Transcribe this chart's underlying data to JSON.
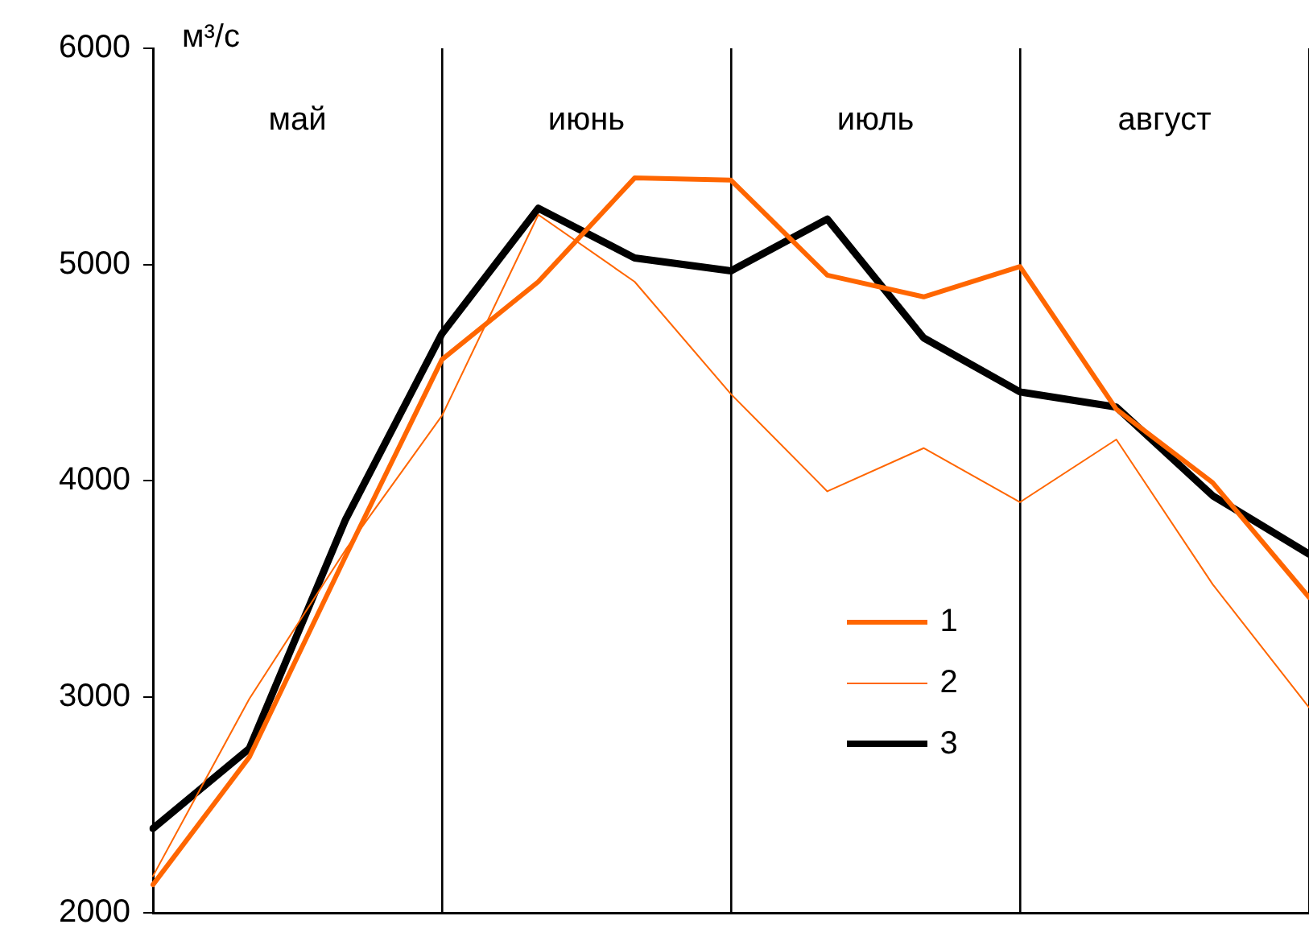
{
  "chart_data": {
    "type": "line",
    "ylabel": "м³/с",
    "ylim": [
      2000,
      6000
    ],
    "yticks": [
      2000,
      3000,
      4000,
      5000,
      6000
    ],
    "tick_labels": "y",
    "legend": "bottom right",
    "marker": "none",
    "line_style": "solid",
    "categories": [
      null,
      null,
      null,
      null,
      null,
      null,
      null,
      null,
      null,
      null,
      null,
      null,
      null
    ],
    "series": [
      {
        "name": "1",
        "color": "#ff6600",
        "values": [
          2130,
          2720,
          3650,
          4560,
          4920,
          5400,
          5390,
          4950,
          4850,
          4990,
          4330,
          3990,
          3460
        ]
      },
      {
        "name": "2",
        "color": "#ff6600",
        "values": [
          2170,
          2990,
          3680,
          4300,
          5230,
          4920,
          4400,
          3950,
          4150,
          3900,
          4190,
          3520,
          2950
        ]
      },
      {
        "name": "3",
        "color": "#000000",
        "values": [
          2390,
          2760,
          3820,
          4680,
          5260,
          5030,
          4970,
          5210,
          4660,
          4410,
          4340,
          3930,
          3660
        ]
      }
    ],
    "grid": "x",
    "annotations": [
      "май",
      "июнь",
      "июль",
      "август"
    ]
  }
}
